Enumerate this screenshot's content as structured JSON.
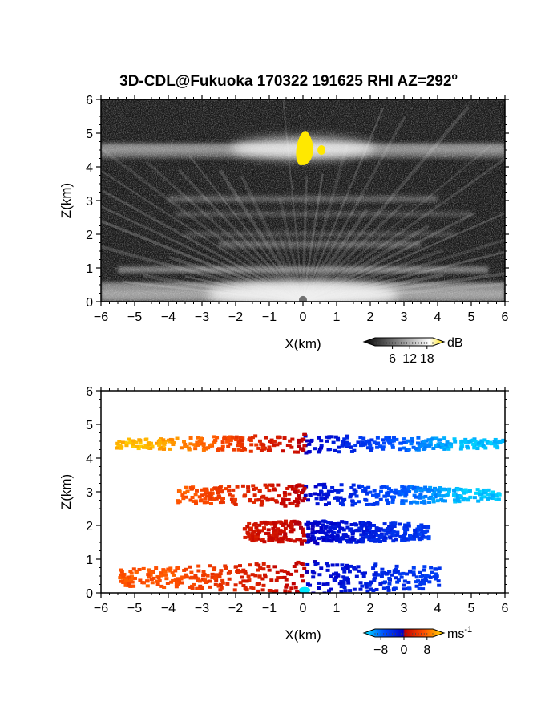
{
  "title": "3D-CDL@Fukuoka 170322 191625 RHI AZ=292",
  "title_superscript": "o",
  "chart_data": [
    {
      "type": "heatmap",
      "panel": "top",
      "quantity": "backscatter intensity",
      "xlabel": "X(km)",
      "ylabel": "Z(km)",
      "xlim": [
        -6,
        6
      ],
      "ylim": [
        0,
        6
      ],
      "xticks": [
        -6,
        -5,
        -4,
        -3,
        -2,
        -1,
        0,
        1,
        2,
        3,
        4,
        5,
        6
      ],
      "yticks": [
        0,
        1,
        2,
        3,
        4,
        5,
        6
      ],
      "colorbar": {
        "unit": "dB",
        "ticks": [
          6,
          12,
          18
        ],
        "range": [
          0,
          20
        ],
        "colors": [
          "#000000",
          "#ffffff",
          "#ffe000"
        ]
      },
      "features": [
        {
          "name": "upper layer",
          "z": 4.5,
          "xrange": [
            -6,
            6
          ],
          "note": "bright band with strong core near x=0, z 4.0-5.3"
        },
        {
          "name": "mid layers",
          "z": [
            3.0,
            2.6,
            1.7,
            0.95
          ],
          "xrange": [
            -4,
            4
          ]
        },
        {
          "name": "surface layer",
          "z": [
            0,
            0.5
          ],
          "xrange": [
            -6,
            6
          ]
        }
      ]
    },
    {
      "type": "heatmap",
      "panel": "bottom",
      "quantity": "radial velocity",
      "xlabel": "X(km)",
      "ylabel": "Z(km)",
      "xlim": [
        -6,
        6
      ],
      "ylim": [
        0,
        6
      ],
      "xticks": [
        -6,
        -5,
        -4,
        -3,
        -2,
        -1,
        0,
        1,
        2,
        3,
        4,
        5,
        6
      ],
      "yticks": [
        0,
        1,
        2,
        3,
        4,
        5,
        6
      ],
      "colorbar": {
        "unit": "ms",
        "unit_exponent": "-1",
        "ticks": [
          "−8",
          "0",
          "8"
        ],
        "range": [
          -10,
          10
        ],
        "colors": [
          "#00e8ff",
          "#0050ff",
          "#0000c8",
          "#c00000",
          "#ff5000",
          "#ffe000"
        ]
      },
      "layers": [
        {
          "z": [
            4.2,
            4.75
          ],
          "xrange": [
            -5.6,
            6
          ],
          "velocity_at_left": 9,
          "velocity_at_right": -9
        },
        {
          "z": [
            2.6,
            3.3
          ],
          "xrange": [
            -3.8,
            5.8
          ],
          "velocity_at_left": 7,
          "velocity_at_right": -9
        },
        {
          "z": [
            1.5,
            2.2
          ],
          "xrange": [
            -1.8,
            3.7
          ],
          "velocity_at_left": 4,
          "velocity_at_right": -5
        },
        {
          "z": [
            0.0,
            1.0
          ],
          "xrange": [
            -5.5,
            4.0
          ],
          "velocity_at_left": 6,
          "velocity_at_right": -5
        }
      ]
    }
  ]
}
